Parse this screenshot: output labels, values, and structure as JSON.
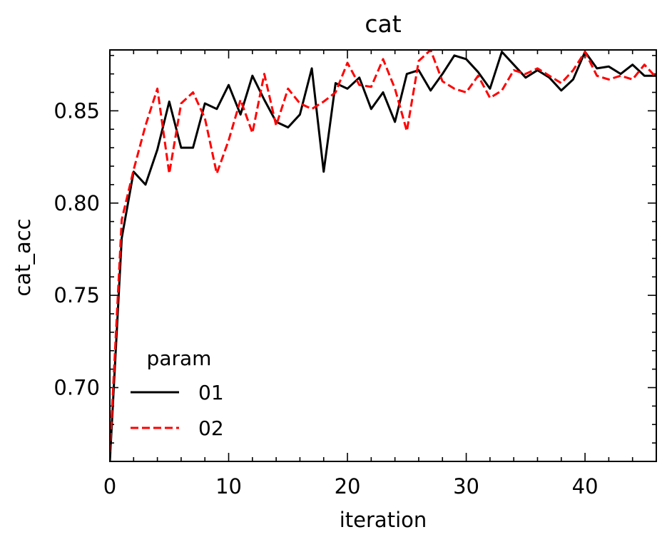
{
  "chart_data": {
    "type": "line",
    "title": "cat",
    "xlabel": "iteration",
    "ylabel": "cat_acc",
    "xlim": [
      0,
      46
    ],
    "ylim": [
      0.66,
      0.883
    ],
    "xticks": [
      0,
      10,
      20,
      30,
      40
    ],
    "xtick_labels": [
      "0",
      "10",
      "20",
      "30",
      "40"
    ],
    "yticks": [
      0.7,
      0.75,
      0.8,
      0.85
    ],
    "ytick_labels": [
      "0.70",
      "0.75",
      "0.80",
      "0.85"
    ],
    "grid": false,
    "legend": {
      "title": "param",
      "position": "lower-left"
    },
    "series": [
      {
        "name": "01",
        "color": "#000000",
        "dash": "solid",
        "x": [
          0,
          1,
          2,
          3,
          4,
          5,
          6,
          7,
          8,
          9,
          10,
          11,
          12,
          13,
          14,
          15,
          16,
          17,
          18,
          19,
          20,
          21,
          22,
          23,
          24,
          25,
          26,
          27,
          28,
          29,
          30,
          31,
          32,
          33,
          34,
          35,
          36,
          37,
          38,
          39,
          40,
          41,
          42,
          43,
          44,
          45,
          46
        ],
        "y": [
          0.66,
          0.781,
          0.817,
          0.81,
          0.829,
          0.855,
          0.83,
          0.83,
          0.854,
          0.851,
          0.864,
          0.848,
          0.869,
          0.856,
          0.844,
          0.841,
          0.848,
          0.873,
          0.817,
          0.865,
          0.862,
          0.868,
          0.851,
          0.86,
          0.844,
          0.87,
          0.872,
          0.861,
          0.87,
          0.88,
          0.878,
          0.871,
          0.862,
          0.882,
          0.875,
          0.868,
          0.872,
          0.868,
          0.861,
          0.867,
          0.882,
          0.873,
          0.874,
          0.87,
          0.875,
          0.869,
          0.869
        ]
      },
      {
        "name": "02",
        "color": "#ff0000",
        "dash": "dashed",
        "x": [
          0,
          1,
          2,
          3,
          4,
          5,
          6,
          7,
          8,
          9,
          10,
          11,
          12,
          13,
          14,
          15,
          16,
          17,
          18,
          19,
          20,
          21,
          22,
          23,
          24,
          25,
          26,
          27,
          28,
          29,
          30,
          31,
          32,
          33,
          34,
          35,
          36,
          37,
          38,
          39,
          40,
          41,
          42,
          43,
          44,
          45,
          46
        ],
        "y": [
          0.665,
          0.791,
          0.818,
          0.842,
          0.862,
          0.816,
          0.854,
          0.86,
          0.846,
          0.816,
          0.834,
          0.856,
          0.838,
          0.87,
          0.842,
          0.862,
          0.854,
          0.851,
          0.855,
          0.86,
          0.876,
          0.864,
          0.863,
          0.878,
          0.862,
          0.839,
          0.877,
          0.883,
          0.866,
          0.862,
          0.86,
          0.869,
          0.857,
          0.861,
          0.872,
          0.87,
          0.873,
          0.869,
          0.865,
          0.872,
          0.882,
          0.869,
          0.867,
          0.869,
          0.867,
          0.875,
          0.868
        ]
      }
    ]
  }
}
